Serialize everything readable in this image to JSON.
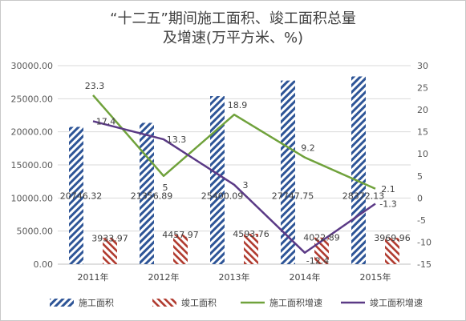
{
  "chart_data": {
    "type": "bar",
    "title_line1": "“十二五”期间施工面积、竣工面积总量",
    "title_line2": "及增速(万平方米、%)",
    "categories": [
      "2011年",
      "2012年",
      "2013年",
      "2014年",
      "2015年"
    ],
    "y_left_ticks": [
      "0.00",
      "5000.00",
      "10000.00",
      "15000.00",
      "20000.00",
      "25000.00",
      "30000.00"
    ],
    "y_right_ticks": [
      "-15",
      "-10",
      "-5",
      "0",
      "5",
      "10",
      "15",
      "20",
      "25",
      "30"
    ],
    "ylim_left": [
      0,
      30000
    ],
    "ylim_right": [
      -15,
      30
    ],
    "grid": true,
    "legend_position": "bottom",
    "series": [
      {
        "name": "施工面积",
        "kind": "bar",
        "axis": "left",
        "color": "#2e5597",
        "values": [
          20746.32,
          21356.89,
          25400.09,
          27747.75,
          28372.13
        ],
        "labels": [
          "20746.32",
          "21356.89",
          "25400.09",
          "27747.75",
          "28372.13"
        ]
      },
      {
        "name": "竣工面积",
        "kind": "bar",
        "axis": "left",
        "color": "#b03a2e",
        "values": [
          3933.97,
          4457.97,
          4593.76,
          4022.89,
          3969.96
        ],
        "labels": [
          "3933.97",
          "4457.97",
          "4593.76",
          "4022.89",
          "3969.96"
        ]
      },
      {
        "name": "施工面积增速",
        "kind": "line",
        "axis": "right",
        "color": "#70a23c",
        "values": [
          23.3,
          5,
          18.9,
          9.2,
          2.1
        ],
        "labels": [
          "23.3",
          "5",
          "18.9",
          "9.2",
          "2.1"
        ]
      },
      {
        "name": "竣工面积增速",
        "kind": "line",
        "axis": "right",
        "color": "#5b3a86",
        "values": [
          17.4,
          13.3,
          3,
          -12.4,
          -1.3
        ],
        "labels": [
          "17.4",
          "13.3",
          "3",
          "-12.4",
          "-1.3"
        ]
      }
    ]
  }
}
